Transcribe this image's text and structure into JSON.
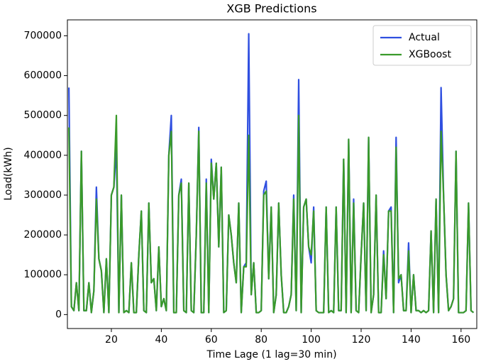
{
  "chart_data": {
    "type": "line",
    "title": "XGB Predictions",
    "x_label": "Time Lage (1 lag=30 min)",
    "y_label": "Load(kWh)",
    "x": [
      3,
      4,
      5,
      6,
      7,
      8,
      9,
      10,
      11,
      12,
      13,
      14,
      15,
      16,
      17,
      18,
      19,
      20,
      21,
      22,
      23,
      24,
      25,
      26,
      27,
      28,
      29,
      30,
      31,
      32,
      33,
      34,
      35,
      36,
      37,
      38,
      39,
      40,
      41,
      42,
      43,
      44,
      45,
      46,
      47,
      48,
      49,
      50,
      51,
      52,
      53,
      54,
      55,
      56,
      57,
      58,
      59,
      60,
      61,
      62,
      63,
      64,
      65,
      66,
      67,
      68,
      69,
      70,
      71,
      72,
      73,
      74,
      75,
      76,
      77,
      78,
      79,
      80,
      81,
      82,
      83,
      84,
      85,
      86,
      87,
      88,
      89,
      90,
      91,
      92,
      93,
      94,
      95,
      96,
      97,
      98,
      99,
      100,
      101,
      102,
      103,
      104,
      105,
      106,
      107,
      108,
      109,
      110,
      111,
      112,
      113,
      114,
      115,
      116,
      117,
      118,
      119,
      120,
      121,
      122,
      123,
      124,
      125,
      126,
      127,
      128,
      129,
      130,
      131,
      132,
      133,
      134,
      135,
      136,
      137,
      138,
      139,
      140,
      141,
      142,
      143,
      144,
      145,
      146,
      147,
      148,
      149,
      150,
      151,
      152,
      153,
      154,
      155,
      156,
      157,
      158,
      159,
      160,
      161,
      162,
      163,
      164,
      165
    ],
    "series": [
      {
        "name": "Actual",
        "color": "#2f4fe0",
        "values": [
          570000,
          20000,
          10000,
          80000,
          10000,
          410000,
          10000,
          10000,
          80000,
          5000,
          60000,
          320000,
          140000,
          110000,
          5000,
          140000,
          5000,
          300000,
          320000,
          420000,
          5000,
          300000,
          5000,
          10000,
          5000,
          130000,
          5000,
          5000,
          150000,
          260000,
          10000,
          5000,
          280000,
          80000,
          90000,
          10000,
          170000,
          20000,
          40000,
          10000,
          400000,
          500000,
          5000,
          5000,
          300000,
          340000,
          10000,
          5000,
          330000,
          10000,
          5000,
          200000,
          470000,
          5000,
          5000,
          340000,
          5000,
          390000,
          290000,
          380000,
          170000,
          370000,
          5000,
          10000,
          250000,
          200000,
          130000,
          80000,
          280000,
          5000,
          120000,
          130000,
          705000,
          50000,
          130000,
          5000,
          5000,
          10000,
          310000,
          335000,
          90000,
          270000,
          5000,
          50000,
          280000,
          100000,
          5000,
          5000,
          20000,
          50000,
          300000,
          10000,
          590000,
          5000,
          270000,
          290000,
          170000,
          130000,
          270000,
          10000,
          5000,
          5000,
          5000,
          270000,
          5000,
          10000,
          5000,
          270000,
          10000,
          10000,
          390000,
          5000,
          440000,
          5000,
          290000,
          10000,
          5000,
          150000,
          280000,
          10000,
          445000,
          5000,
          50000,
          300000,
          5000,
          5000,
          160000,
          40000,
          260000,
          270000,
          5000,
          445000,
          80000,
          100000,
          10000,
          10000,
          180000,
          5000,
          100000,
          10000,
          10000,
          5000,
          10000,
          5000,
          10000,
          210000,
          5000,
          290000,
          5000,
          570000,
          300000,
          100000,
          10000,
          20000,
          40000,
          410000,
          5000,
          5000,
          5000,
          10000,
          280000,
          10000,
          5000
        ]
      },
      {
        "name": "XGBoost",
        "color": "#3a9a2a",
        "values": [
          470000,
          20000,
          10000,
          80000,
          10000,
          410000,
          10000,
          10000,
          80000,
          5000,
          60000,
          290000,
          140000,
          110000,
          5000,
          140000,
          5000,
          300000,
          320000,
          500000,
          5000,
          300000,
          5000,
          10000,
          5000,
          130000,
          5000,
          5000,
          150000,
          260000,
          10000,
          5000,
          280000,
          80000,
          90000,
          10000,
          170000,
          20000,
          40000,
          10000,
          400000,
          460000,
          5000,
          5000,
          300000,
          330000,
          10000,
          5000,
          330000,
          10000,
          5000,
          200000,
          460000,
          5000,
          5000,
          330000,
          5000,
          380000,
          290000,
          380000,
          170000,
          370000,
          5000,
          10000,
          250000,
          200000,
          130000,
          80000,
          280000,
          5000,
          120000,
          120000,
          450000,
          50000,
          130000,
          5000,
          5000,
          10000,
          300000,
          310000,
          90000,
          270000,
          5000,
          50000,
          280000,
          100000,
          5000,
          5000,
          20000,
          50000,
          290000,
          10000,
          500000,
          5000,
          270000,
          290000,
          170000,
          150000,
          260000,
          10000,
          5000,
          5000,
          5000,
          270000,
          5000,
          10000,
          5000,
          270000,
          10000,
          10000,
          390000,
          5000,
          440000,
          5000,
          280000,
          10000,
          5000,
          150000,
          280000,
          10000,
          445000,
          5000,
          50000,
          300000,
          5000,
          5000,
          150000,
          40000,
          260000,
          260000,
          5000,
          420000,
          90000,
          100000,
          10000,
          10000,
          160000,
          5000,
          100000,
          10000,
          10000,
          5000,
          10000,
          5000,
          10000,
          210000,
          5000,
          290000,
          5000,
          460000,
          300000,
          100000,
          10000,
          20000,
          40000,
          410000,
          5000,
          5000,
          5000,
          10000,
          280000,
          10000,
          5000
        ]
      }
    ],
    "xlim": [
      2.4,
      166.3
    ],
    "xticks": [
      20,
      40,
      60,
      80,
      100,
      120,
      140,
      160
    ],
    "ylim": [
      -35000,
      740000
    ],
    "yticks": [
      0,
      100000,
      200000,
      300000,
      400000,
      500000,
      600000,
      700000
    ],
    "legend": "upper right"
  }
}
